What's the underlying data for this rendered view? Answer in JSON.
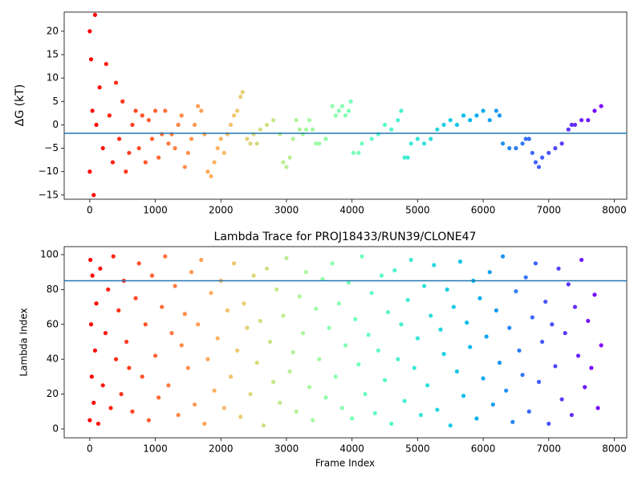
{
  "chart_data": [
    {
      "type": "scatter",
      "ylabel": "ΔG (kT)",
      "colormap": "rainbow_r",
      "x": [
        0,
        0,
        20,
        40,
        60,
        80,
        100,
        150,
        200,
        250,
        300,
        350,
        400,
        450,
        500,
        550,
        600,
        650,
        700,
        750,
        800,
        850,
        900,
        950,
        1000,
        1050,
        1100,
        1150,
        1200,
        1250,
        1300,
        1350,
        1400,
        1450,
        1500,
        1550,
        1600,
        1650,
        1700,
        1750,
        1800,
        1850,
        1900,
        1950,
        2000,
        2050,
        2100,
        2150,
        2200,
        2250,
        2300,
        2330,
        2400,
        2450,
        2500,
        2550,
        2600,
        2700,
        2800,
        2900,
        2950,
        3000,
        3050,
        3100,
        3150,
        3200,
        3250,
        3300,
        3350,
        3400,
        3450,
        3500,
        3600,
        3700,
        3750,
        3800,
        3850,
        3900,
        3950,
        3980,
        4020,
        4100,
        4150,
        4300,
        4400,
        4500,
        4600,
        4700,
        4750,
        4800,
        4850,
        4900,
        5000,
        5100,
        5200,
        5300,
        5400,
        5500,
        5600,
        5700,
        5800,
        5900,
        6000,
        6100,
        6200,
        6250,
        6300,
        6400,
        6500,
        6600,
        6650,
        6700,
        6750,
        6800,
        6850,
        6900,
        7000,
        7100,
        7200,
        7300,
        7350,
        7400,
        7500,
        7600,
        7700,
        7800
      ],
      "y": [
        20,
        -10,
        14,
        3,
        -15,
        23.5,
        0,
        8,
        -5,
        13,
        2,
        -8,
        9,
        -3,
        5,
        -10,
        -6,
        0,
        3,
        -5,
        2,
        -8,
        1,
        -3,
        3,
        -7,
        -2,
        3,
        -4,
        -2,
        -5,
        0,
        2,
        -9,
        -6,
        -3,
        0,
        4,
        3,
        -2,
        -10,
        -11,
        -8,
        -5,
        -3,
        -6,
        -2,
        0,
        2,
        3,
        6,
        7,
        -3,
        -4,
        -2,
        -4,
        -1,
        0,
        1,
        -2,
        -8,
        -9,
        -7,
        -3,
        1,
        -1,
        -2,
        -1,
        1,
        -1,
        -4,
        -4,
        -3,
        4,
        2,
        3,
        4,
        2,
        3,
        5,
        -6,
        -6,
        -4,
        -3,
        -2,
        0,
        -1,
        1,
        3,
        -7,
        -7,
        -4,
        -3,
        -4,
        -3,
        -1,
        0,
        1,
        0,
        2,
        1,
        2,
        3,
        1,
        3,
        2,
        -4,
        -5,
        -5,
        -4,
        -3,
        -3,
        -6,
        -8,
        -9,
        -7,
        -6,
        -5,
        -4,
        -1,
        0,
        0,
        1,
        1,
        3,
        4
      ],
      "hline": -1.8,
      "hline_color": "#1f77b4",
      "xlim": [
        -390,
        8190
      ],
      "xticks": [
        0,
        1000,
        2000,
        3000,
        4000,
        5000,
        6000,
        7000,
        8000
      ],
      "ylim": [
        -15.9,
        24.1
      ],
      "yticks": [
        {
          "value": -15,
          "label": "−15"
        },
        {
          "value": -10,
          "label": "−10"
        },
        {
          "value": -5,
          "label": "−5"
        },
        0,
        5,
        10,
        15,
        20
      ]
    },
    {
      "type": "scatter",
      "title": "Lambda Trace for PROJ18433/RUN39/CLONE47",
      "xlabel": "Frame Index",
      "ylabel": "Lambda Index",
      "colormap": "rainbow_r",
      "x": [
        0,
        10,
        20,
        30,
        40,
        60,
        80,
        100,
        130,
        160,
        200,
        240,
        280,
        320,
        360,
        400,
        440,
        480,
        520,
        560,
        600,
        650,
        700,
        750,
        800,
        850,
        900,
        950,
        1000,
        1050,
        1100,
        1150,
        1200,
        1250,
        1300,
        1350,
        1400,
        1450,
        1500,
        1550,
        1600,
        1650,
        1700,
        1750,
        1800,
        1850,
        1900,
        1950,
        2000,
        2050,
        2100,
        2150,
        2200,
        2250,
        2300,
        2350,
        2400,
        2450,
        2500,
        2550,
        2600,
        2650,
        2700,
        2750,
        2800,
        2850,
        2900,
        2950,
        3000,
        3050,
        3100,
        3150,
        3200,
        3250,
        3300,
        3350,
        3400,
        3450,
        3500,
        3550,
        3600,
        3650,
        3700,
        3750,
        3800,
        3850,
        3900,
        3950,
        4000,
        4050,
        4100,
        4150,
        4200,
        4250,
        4300,
        4350,
        4400,
        4450,
        4500,
        4550,
        4600,
        4650,
        4700,
        4750,
        4800,
        4850,
        4900,
        4950,
        5000,
        5050,
        5100,
        5150,
        5200,
        5250,
        5300,
        5350,
        5400,
        5450,
        5500,
        5550,
        5600,
        5650,
        5700,
        5750,
        5800,
        5850,
        5900,
        5950,
        6000,
        6050,
        6100,
        6150,
        6200,
        6250,
        6300,
        6350,
        6400,
        6450,
        6500,
        6550,
        6600,
        6650,
        6700,
        6750,
        6800,
        6850,
        6900,
        6950,
        7000,
        7050,
        7100,
        7150,
        7200,
        7250,
        7300,
        7350,
        7400,
        7450,
        7500,
        7550,
        7600,
        7650,
        7700,
        7750,
        7800
      ],
      "y": [
        5,
        97,
        60,
        30,
        88,
        15,
        45,
        72,
        3,
        92,
        25,
        55,
        80,
        12,
        99,
        40,
        68,
        20,
        85,
        50,
        35,
        10,
        75,
        95,
        30,
        60,
        5,
        88,
        42,
        18,
        70,
        99,
        25,
        55,
        82,
        8,
        48,
        66,
        35,
        90,
        14,
        60,
        97,
        3,
        40,
        78,
        22,
        52,
        85,
        12,
        68,
        30,
        95,
        45,
        7,
        72,
        58,
        20,
        88,
        38,
        62,
        2,
        92,
        50,
        27,
        80,
        15,
        65,
        98,
        33,
        44,
        10,
        76,
        55,
        90,
        24,
        5,
        69,
        40,
        86,
        18,
        58,
        95,
        30,
        72,
        12,
        48,
        84,
        6,
        63,
        37,
        99,
        20,
        54,
        78,
        9,
        45,
        88,
        28,
        67,
        3,
        91,
        40,
        60,
        16,
        74,
        97,
        35,
        52,
        8,
        82,
        25,
        65,
        94,
        11,
        57,
        43,
        80,
        2,
        70,
        33,
        96,
        19,
        61,
        47,
        85,
        6,
        75,
        29,
        53,
        90,
        14,
        68,
        38,
        99,
        22,
        58,
        4,
        79,
        45,
        31,
        87,
        10,
        64,
        95,
        27,
        50,
        73,
        3,
        60,
        36,
        92,
        17,
        55,
        83,
        8,
        70,
        42,
        97,
        24,
        62,
        35,
        77,
        12,
        48
      ],
      "hline": 85,
      "hline_color": "#1f77b4",
      "xlim": [
        -390,
        8190
      ],
      "xticks": [
        0,
        1000,
        2000,
        3000,
        4000,
        5000,
        6000,
        7000,
        8000
      ],
      "ylim": [
        -5.1,
        104.6
      ],
      "yticks": [
        0,
        20,
        40,
        60,
        80,
        100
      ]
    }
  ]
}
